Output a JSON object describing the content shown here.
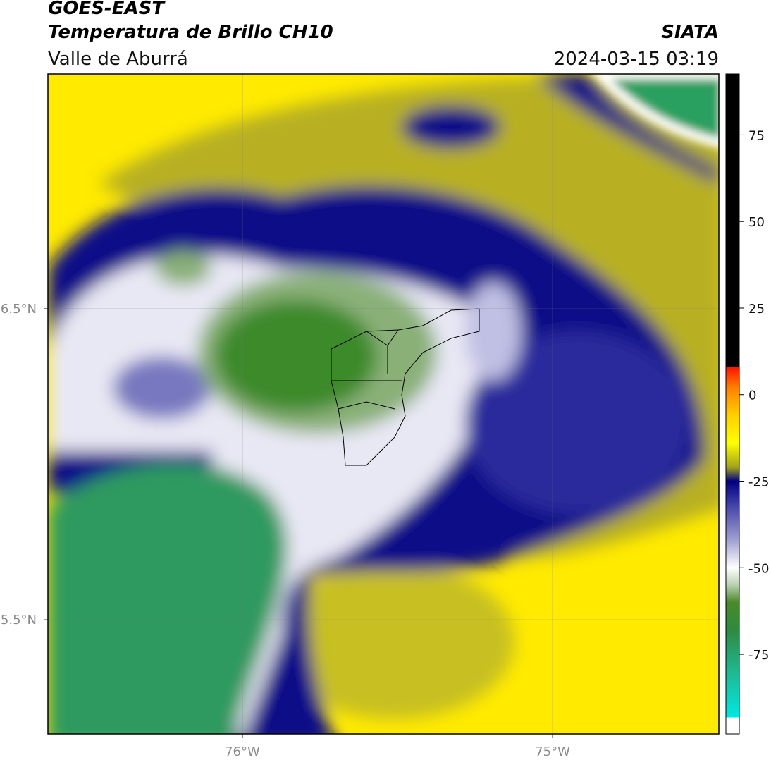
{
  "header": {
    "title": "GOES-EAST",
    "subtitle": "Temperatura de Brillo CH10",
    "region": "Valle de Aburrá",
    "source": "SIATA",
    "timestamp": "2024-03-15 03:19"
  },
  "map": {
    "lonlim": [
      -76.627,
      -74.464
    ],
    "latlim": [
      5.133,
      7.255
    ],
    "lon_ticks": [
      {
        "value": -76,
        "label": "76°W"
      },
      {
        "value": -75,
        "label": "75°W"
      }
    ],
    "lat_ticks": [
      {
        "value": 6.5,
        "label": "6.5°N"
      },
      {
        "value": 5.5,
        "label": "5.5°N"
      }
    ]
  },
  "colorbar": {
    "lim": [
      -98,
      92.6
    ],
    "ticks": [
      75,
      50,
      25,
      0,
      -25,
      -50,
      -75
    ],
    "stops": [
      {
        "value": -98,
        "color": "#ffffff"
      },
      {
        "value": -93.2,
        "color": "#ffffff"
      },
      {
        "value": -93.2,
        "color": "#00e8e0"
      },
      {
        "value": -80,
        "color": "#20b890"
      },
      {
        "value": -68,
        "color": "#2e8a40"
      },
      {
        "value": -60,
        "color": "#4a8a28"
      },
      {
        "value": -55,
        "color": "#b8d0b0"
      },
      {
        "value": -50,
        "color": "#ffffff"
      },
      {
        "value": -42,
        "color": "#a0a0d0"
      },
      {
        "value": -30,
        "color": "#3030a0"
      },
      {
        "value": -25,
        "color": "#000080"
      },
      {
        "value": -21,
        "color": "#a0a020"
      },
      {
        "value": -14,
        "color": "#ffff00"
      },
      {
        "value": -6,
        "color": "#ffd000"
      },
      {
        "value": 2,
        "color": "#ff8000"
      },
      {
        "value": 8,
        "color": "#ff1000"
      },
      {
        "value": 8,
        "color": "#000000"
      },
      {
        "value": 92.6,
        "color": "#000000"
      }
    ]
  }
}
